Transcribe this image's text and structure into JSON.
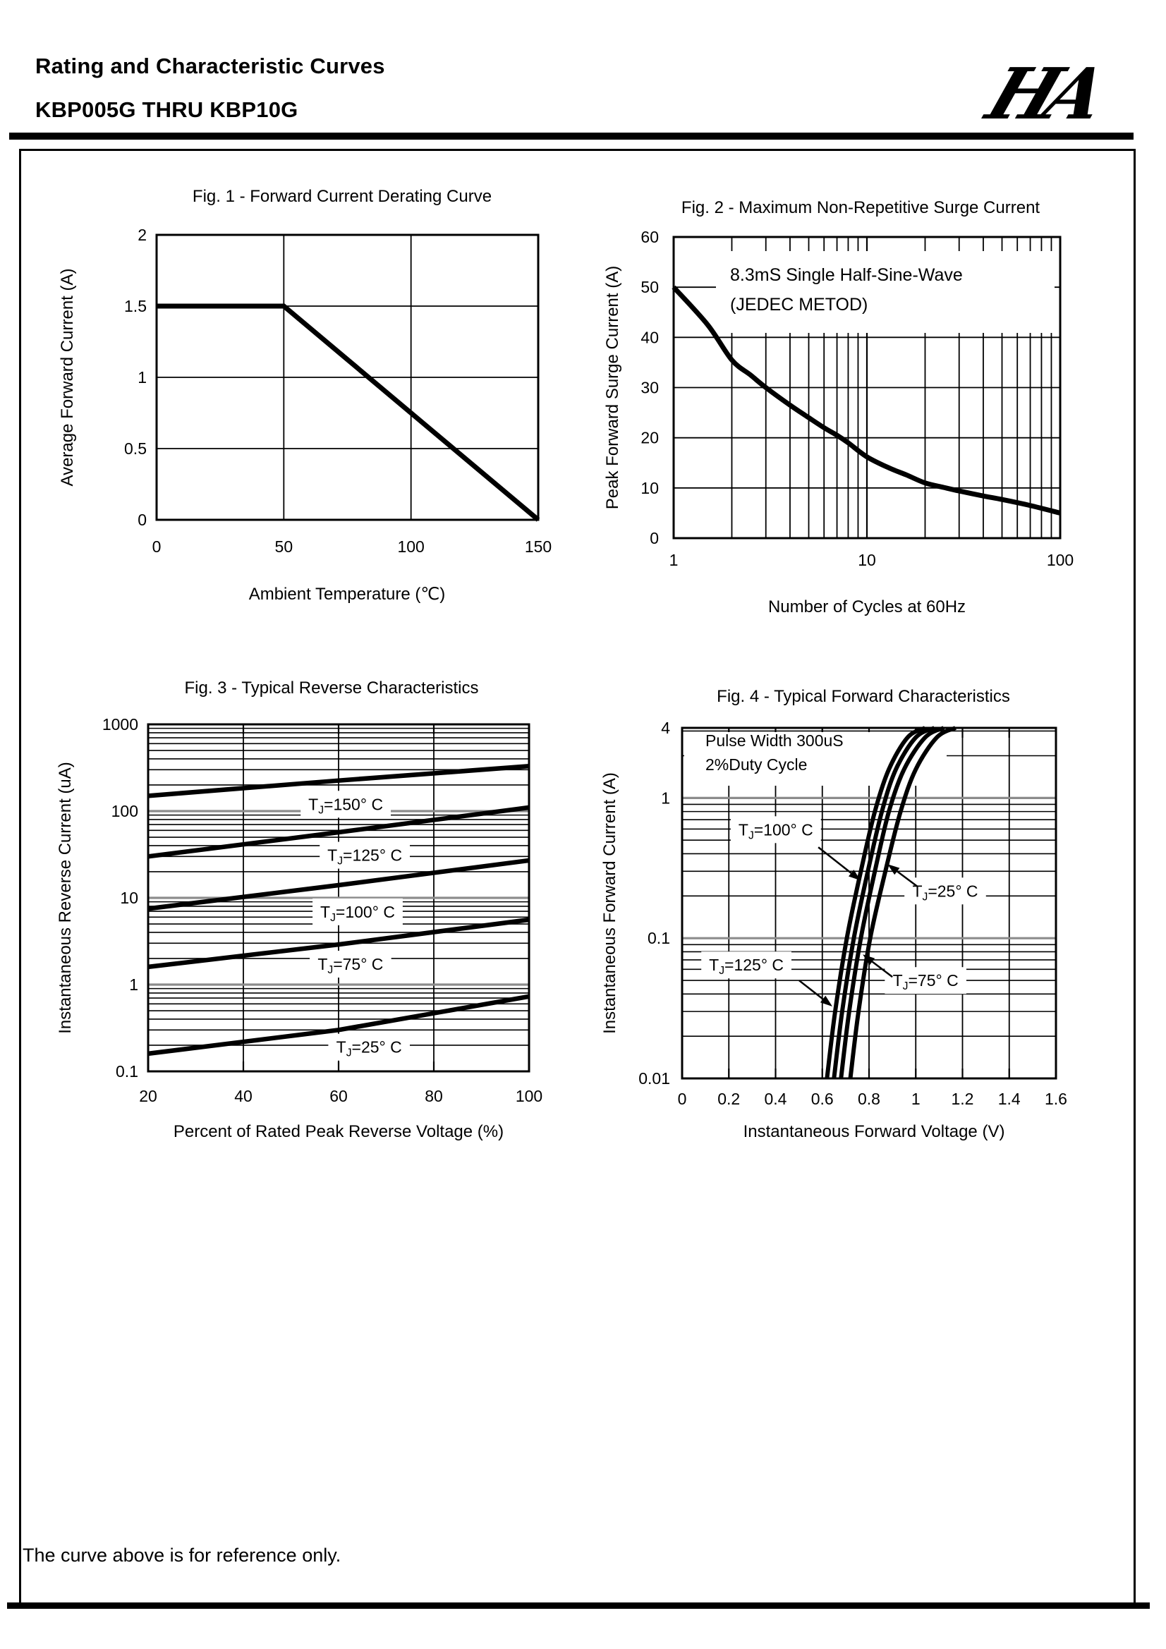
{
  "header": {
    "title": "Rating and Characteristic Curves",
    "part_range": "KBP005G THRU KBP10G",
    "logo_text": "HA"
  },
  "footer_note": "The curve above is for reference only.",
  "colors": {
    "curve": "#000000",
    "grid": "#000000",
    "decade_grid": "#8c8c8c",
    "background": "#ffffff"
  },
  "chart_data": [
    {
      "id": "fig1",
      "type": "line",
      "title": "Fig. 1 - Forward Current Derating Curve",
      "xlabel": "Ambient Temperature (℃)",
      "ylabel": "Average Forward Current (A)",
      "grid": true,
      "x_axis": {
        "scale": "linear",
        "min": 0,
        "max": 150,
        "ticks": [
          0,
          50,
          100,
          150
        ],
        "tick_labels": [
          "0",
          "50",
          "100",
          "150"
        ],
        "gridlines": [
          50,
          100
        ]
      },
      "y_axis": {
        "scale": "linear",
        "min": 0,
        "max": 2,
        "ticks": [
          0,
          0.5,
          1,
          1.5,
          2
        ],
        "tick_labels": [
          "0",
          "0.5",
          "1",
          "1.5",
          "2"
        ],
        "gridlines": [
          0.5,
          1,
          1.5
        ]
      },
      "series": [
        {
          "name": "average-forward-current",
          "smooth": false,
          "points": [
            [
              0,
              1.5
            ],
            [
              50,
              1.5
            ],
            [
              150,
              0
            ]
          ]
        }
      ]
    },
    {
      "id": "fig2",
      "type": "line",
      "title": "Fig. 2 - Maximum Non-Repetitive Surge Current",
      "xlabel": "Number of Cycles at 60Hz",
      "ylabel": "Peak Forward Surge Current (A)",
      "grid": true,
      "x_axis": {
        "scale": "log",
        "min": 1,
        "max": 100,
        "ticks": [
          1,
          10,
          100
        ],
        "tick_labels": [
          "1",
          "10",
          "100"
        ],
        "decade_color": "#000000"
      },
      "y_axis": {
        "scale": "linear",
        "min": 0,
        "max": 60,
        "ticks": [
          0,
          10,
          20,
          30,
          40,
          50,
          60
        ],
        "tick_labels": [
          "0",
          "10",
          "20",
          "30",
          "40",
          "50",
          "60"
        ],
        "gridlines": [
          10,
          20,
          30,
          40,
          50
        ]
      },
      "annotation": {
        "lines": [
          "8.3mS Single Half-Sine-Wave",
          "(JEDEC METOD)"
        ]
      },
      "series": [
        {
          "name": "peak-forward-surge-current",
          "smooth": true,
          "points": [
            [
              1,
              50
            ],
            [
              1.5,
              42.5
            ],
            [
              2,
              35.5
            ],
            [
              2.5,
              32.5
            ],
            [
              3,
              30
            ],
            [
              4,
              26.5
            ],
            [
              5,
              24
            ],
            [
              6,
              22
            ],
            [
              7,
              20.5
            ],
            [
              8,
              19
            ],
            [
              10,
              16.2
            ],
            [
              13,
              14
            ],
            [
              16,
              12.6
            ],
            [
              20,
              11
            ],
            [
              25,
              10.1
            ],
            [
              30,
              9.4
            ],
            [
              40,
              8.4
            ],
            [
              50,
              7.7
            ],
            [
              70,
              6.5
            ],
            [
              100,
              5
            ]
          ]
        }
      ]
    },
    {
      "id": "fig3",
      "type": "line",
      "title": "Fig. 3 - Typical Reverse Characteristics",
      "xlabel": "Percent of Rated Peak Reverse Voltage (%)",
      "ylabel": "Instantaneous Reverse Current (uA)",
      "grid": true,
      "x_axis": {
        "scale": "linear",
        "min": 20,
        "max": 100,
        "ticks": [
          20,
          40,
          60,
          80,
          100
        ],
        "tick_labels": [
          "20",
          "40",
          "60",
          "80",
          "100"
        ],
        "gridlines": [
          40,
          60,
          80
        ],
        "inner_ticks": true
      },
      "y_axis": {
        "scale": "log",
        "min": 0.1,
        "max": 1000,
        "ticks": [
          0.1,
          1,
          10,
          100,
          1000
        ],
        "tick_labels": [
          "0.1",
          "1",
          "10",
          "100",
          "1000"
        ],
        "decade_color": "#8c8c8c"
      },
      "series": [
        {
          "name": "tj-150c",
          "label": "TJ=150° C",
          "smooth": false,
          "points": [
            [
              20,
              150
            ],
            [
              60,
              225
            ],
            [
              100,
              330
            ]
          ]
        },
        {
          "name": "tj-125c",
          "label": "TJ=125° C",
          "smooth": false,
          "points": [
            [
              20,
              30
            ],
            [
              60,
              57
            ],
            [
              100,
              110
            ]
          ]
        },
        {
          "name": "tj-100c",
          "label": "TJ=100° C",
          "smooth": false,
          "points": [
            [
              20,
              7.5
            ],
            [
              60,
              14
            ],
            [
              100,
              27
            ]
          ]
        },
        {
          "name": "tj-75c",
          "label": "TJ=75° C",
          "smooth": false,
          "points": [
            [
              20,
              1.6
            ],
            [
              60,
              2.9
            ],
            [
              100,
              5.6
            ]
          ]
        },
        {
          "name": "tj-25c",
          "label": "TJ=25° C",
          "smooth": false,
          "points": [
            [
              20,
              0.16
            ],
            [
              60,
              0.3
            ],
            [
              100,
              0.73
            ]
          ]
        }
      ],
      "labels": [
        {
          "text": "TJ=150° C",
          "x": 61.5,
          "y": 120
        },
        {
          "text": "TJ=125° C",
          "x": 65.5,
          "y": 31
        },
        {
          "text": "TJ=100° C",
          "x": 64,
          "y": 6.9
        },
        {
          "text": "TJ=75° C",
          "x": 62.5,
          "y": 1.72
        },
        {
          "text": "TJ=25° C",
          "x": 66.4,
          "y": 0.19
        }
      ]
    },
    {
      "id": "fig4",
      "type": "line",
      "title": "Fig. 4 - Typical Forward Characteristics",
      "xlabel": "Instantaneous Forward Voltage (V)",
      "ylabel": "Instantaneous Forward Current (A)",
      "grid": true,
      "x_axis": {
        "scale": "linear",
        "min": 0,
        "max": 1.6,
        "ticks": [
          0,
          0.2,
          0.4,
          0.6,
          0.8,
          1,
          1.2,
          1.4,
          1.6
        ],
        "tick_labels": [
          "0",
          "0.2",
          "0.4",
          "0.6",
          "0.8",
          "1",
          "1.2",
          "1.4",
          "1.6"
        ],
        "gridlines": [
          0.2,
          0.4,
          0.6,
          0.8,
          1,
          1.2,
          1.4
        ],
        "inner_ticks": true
      },
      "y_axis": {
        "scale": "log",
        "min": 0.01,
        "max": 3.16,
        "display_max_label": "4",
        "ticks": [
          0.01,
          0.1,
          1,
          3.16
        ],
        "tick_labels": [
          "0.01",
          "0.1",
          "1",
          "4"
        ],
        "decade_color": "#8c8c8c"
      },
      "annotation": {
        "lines": [
          "Pulse Width 300uS",
          "2%Duty Cycle"
        ]
      },
      "series": [
        {
          "name": "tj-125c",
          "label": "TJ=125° C",
          "smooth": true,
          "points": [
            [
              0.62,
              0.01
            ],
            [
              0.655,
              0.03
            ],
            [
              0.705,
              0.1
            ],
            [
              0.765,
              0.3
            ],
            [
              0.825,
              0.8
            ],
            [
              0.885,
              1.6
            ],
            [
              0.965,
              2.7
            ],
            [
              1.04,
              3.16
            ]
          ]
        },
        {
          "name": "tj-100c",
          "label": "TJ=100° C",
          "smooth": true,
          "points": [
            [
              0.65,
              0.01
            ],
            [
              0.685,
              0.03
            ],
            [
              0.735,
              0.1
            ],
            [
              0.795,
              0.3
            ],
            [
              0.855,
              0.8
            ],
            [
              0.915,
              1.6
            ],
            [
              1.0,
              2.7
            ],
            [
              1.08,
              3.16
            ]
          ]
        },
        {
          "name": "tj-75c",
          "label": "TJ=75° C",
          "smooth": true,
          "points": [
            [
              0.68,
              0.01
            ],
            [
              0.715,
              0.03
            ],
            [
              0.765,
              0.1
            ],
            [
              0.825,
              0.3
            ],
            [
              0.885,
              0.8
            ],
            [
              0.95,
              1.6
            ],
            [
              1.04,
              2.7
            ],
            [
              1.12,
              3.16
            ]
          ]
        },
        {
          "name": "tj-25c",
          "label": "TJ=25° C",
          "smooth": true,
          "points": [
            [
              0.72,
              0.01
            ],
            [
              0.755,
              0.03
            ],
            [
              0.805,
              0.1
            ],
            [
              0.87,
              0.3
            ],
            [
              0.935,
              0.8
            ],
            [
              1.0,
              1.6
            ],
            [
              1.09,
              2.7
            ],
            [
              1.17,
              3.16
            ]
          ]
        }
      ],
      "labels": [
        {
          "text": "TJ=100° C",
          "x": 0.401,
          "y": 0.594,
          "arrow": {
            "from": [
              0.583,
              0.445
            ],
            "to": [
              0.764,
              0.258
            ]
          }
        },
        {
          "text": "TJ=25° C",
          "x": 1.126,
          "y": 0.217,
          "arrow": {
            "from": [
              1.005,
              0.235
            ],
            "to": [
              0.879,
              0.337
            ]
          }
        },
        {
          "text": "TJ=125° C",
          "x": 0.275,
          "y": 0.0644,
          "arrow": {
            "from": [
              0.501,
              0.0499
            ],
            "to": [
              0.643,
              0.0326
            ]
          }
        },
        {
          "text": "TJ=75° C",
          "x": 1.042,
          "y": 0.0499,
          "arrow": {
            "from": [
              0.9,
              0.0529
            ],
            "to": [
              0.773,
              0.0766
            ]
          }
        }
      ]
    }
  ]
}
